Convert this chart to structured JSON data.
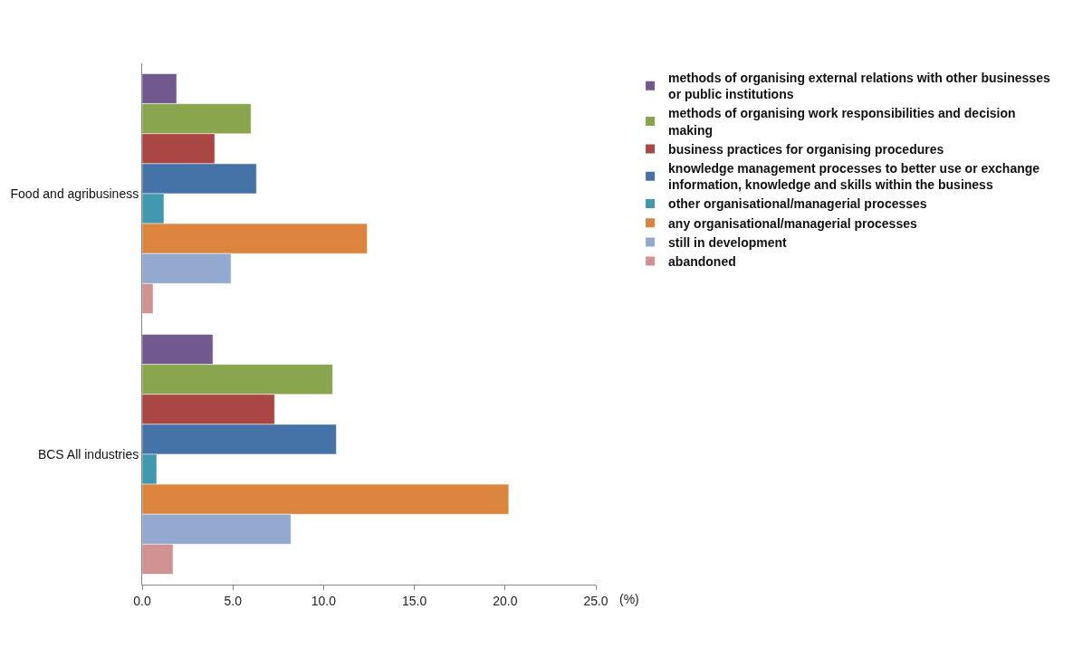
{
  "chart_data": {
    "type": "bar",
    "orientation": "horizontal",
    "categories": [
      "Food and agribusiness",
      "BCS All industries"
    ],
    "xlabel": "(%)",
    "xlim": [
      0,
      25
    ],
    "xticks": [
      {
        "value": 0,
        "label": "0.0"
      },
      {
        "value": 5,
        "label": "5.0"
      },
      {
        "value": 10,
        "label": "10.0"
      },
      {
        "value": 15,
        "label": "15.0"
      },
      {
        "value": 20,
        "label": "20.0"
      },
      {
        "value": 25,
        "label": "25.0"
      }
    ],
    "legend": "right",
    "series": [
      {
        "name": "methods of organising external relations with other businesses or public institutions",
        "color": "#71588f",
        "values": [
          1.9,
          3.9
        ]
      },
      {
        "name": "methods of organising work responsibilities and decision making",
        "color": "#89a54e",
        "values": [
          6.0,
          10.5
        ]
      },
      {
        "name": "business practices for organising procedures",
        "color": "#aa4643",
        "values": [
          4.0,
          7.3
        ]
      },
      {
        "name": "knowledge management processes to better use or exchange information, knowledge and skills within the business",
        "color": "#4572a7",
        "values": [
          6.3,
          10.7
        ]
      },
      {
        "name": "other organisational/managerial processes",
        "color": "#4198af",
        "values": [
          1.2,
          0.8
        ]
      },
      {
        "name": "any organisational/managerial processes",
        "color": "#db843d",
        "values": [
          12.4,
          20.2
        ]
      },
      {
        "name": "still in development",
        "color": "#93a9cf",
        "values": [
          4.9,
          8.2
        ]
      },
      {
        "name": "abandoned",
        "color": "#d19392",
        "values": [
          0.6,
          1.7
        ]
      }
    ]
  }
}
